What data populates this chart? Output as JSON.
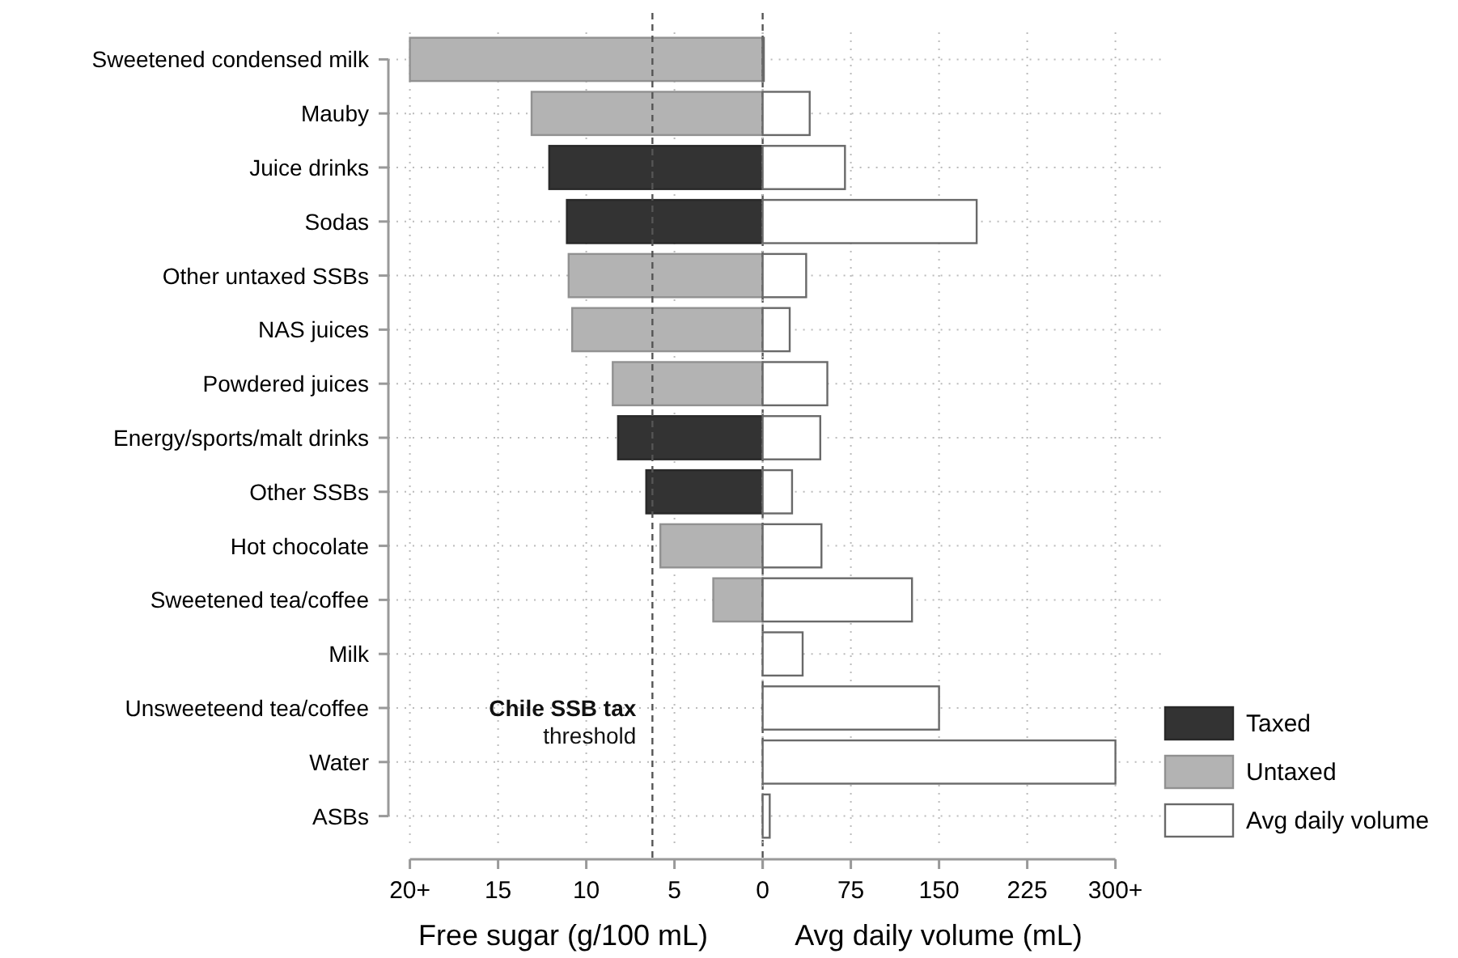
{
  "chart_data": [
    {
      "type": "bar",
      "orientation": "horizontal",
      "categories": [
        "Sweetened condensed milk",
        "Mauby",
        "Juice drinks",
        "Sodas",
        "Other untaxed SSBs",
        "NAS juices",
        "Powdered juices",
        "Energy/sports/malt drinks",
        "Other SSBs",
        "Hot chocolate",
        "Sweetened tea/coffee",
        "Milk",
        "Unsweeteend tea/coffee",
        "Water",
        "ASBs"
      ],
      "series": [
        {
          "name": "Taxed",
          "color": "#333333",
          "values": [
            null,
            null,
            12.1,
            11.1,
            null,
            null,
            null,
            8.2,
            6.6,
            null,
            null,
            null,
            null,
            null,
            null
          ]
        },
        {
          "name": "Untaxed",
          "color": "#b3b3b3",
          "values": [
            20,
            13.1,
            null,
            null,
            11.0,
            10.8,
            8.5,
            null,
            null,
            5.8,
            2.8,
            0,
            0,
            0,
            0
          ]
        }
      ],
      "xlim": [
        20,
        0
      ],
      "xticks": [
        {
          "value": 20,
          "label": "20+"
        },
        15,
        10,
        5,
        0
      ],
      "xlabel": "Free sugar (g/100 mL)",
      "grid": true,
      "legend": "right",
      "ref_lines": [
        {
          "axis": "x",
          "value": 6.25,
          "label": "Chile SSB tax\nthreshold",
          "line_style": "dashed",
          "color": "#555555"
        },
        {
          "axis": "x",
          "value": 0,
          "label": null,
          "line_style": "dashed",
          "color": "#555555"
        }
      ]
    },
    {
      "type": "bar",
      "orientation": "horizontal",
      "categories": [
        null,
        null,
        null,
        null,
        null,
        null,
        null,
        null,
        null,
        null,
        null,
        null,
        null,
        null,
        null
      ],
      "series": [
        {
          "name": "Avg daily volume",
          "color": "#ffffff",
          "values": [
            1,
            40,
            70,
            182,
            37,
            23,
            55,
            49,
            25,
            50,
            127,
            34,
            150,
            300,
            6
          ]
        }
      ],
      "xlim": [
        0,
        300
      ],
      "xticks": [
        {
          "value": 0,
          "label": null
        },
        75,
        150,
        225,
        {
          "value": 300,
          "label": "300+"
        }
      ],
      "xlabel": "Avg daily volume (mL)",
      "grid": true,
      "legend": "right",
      "tick_labels": "x"
    }
  ]
}
